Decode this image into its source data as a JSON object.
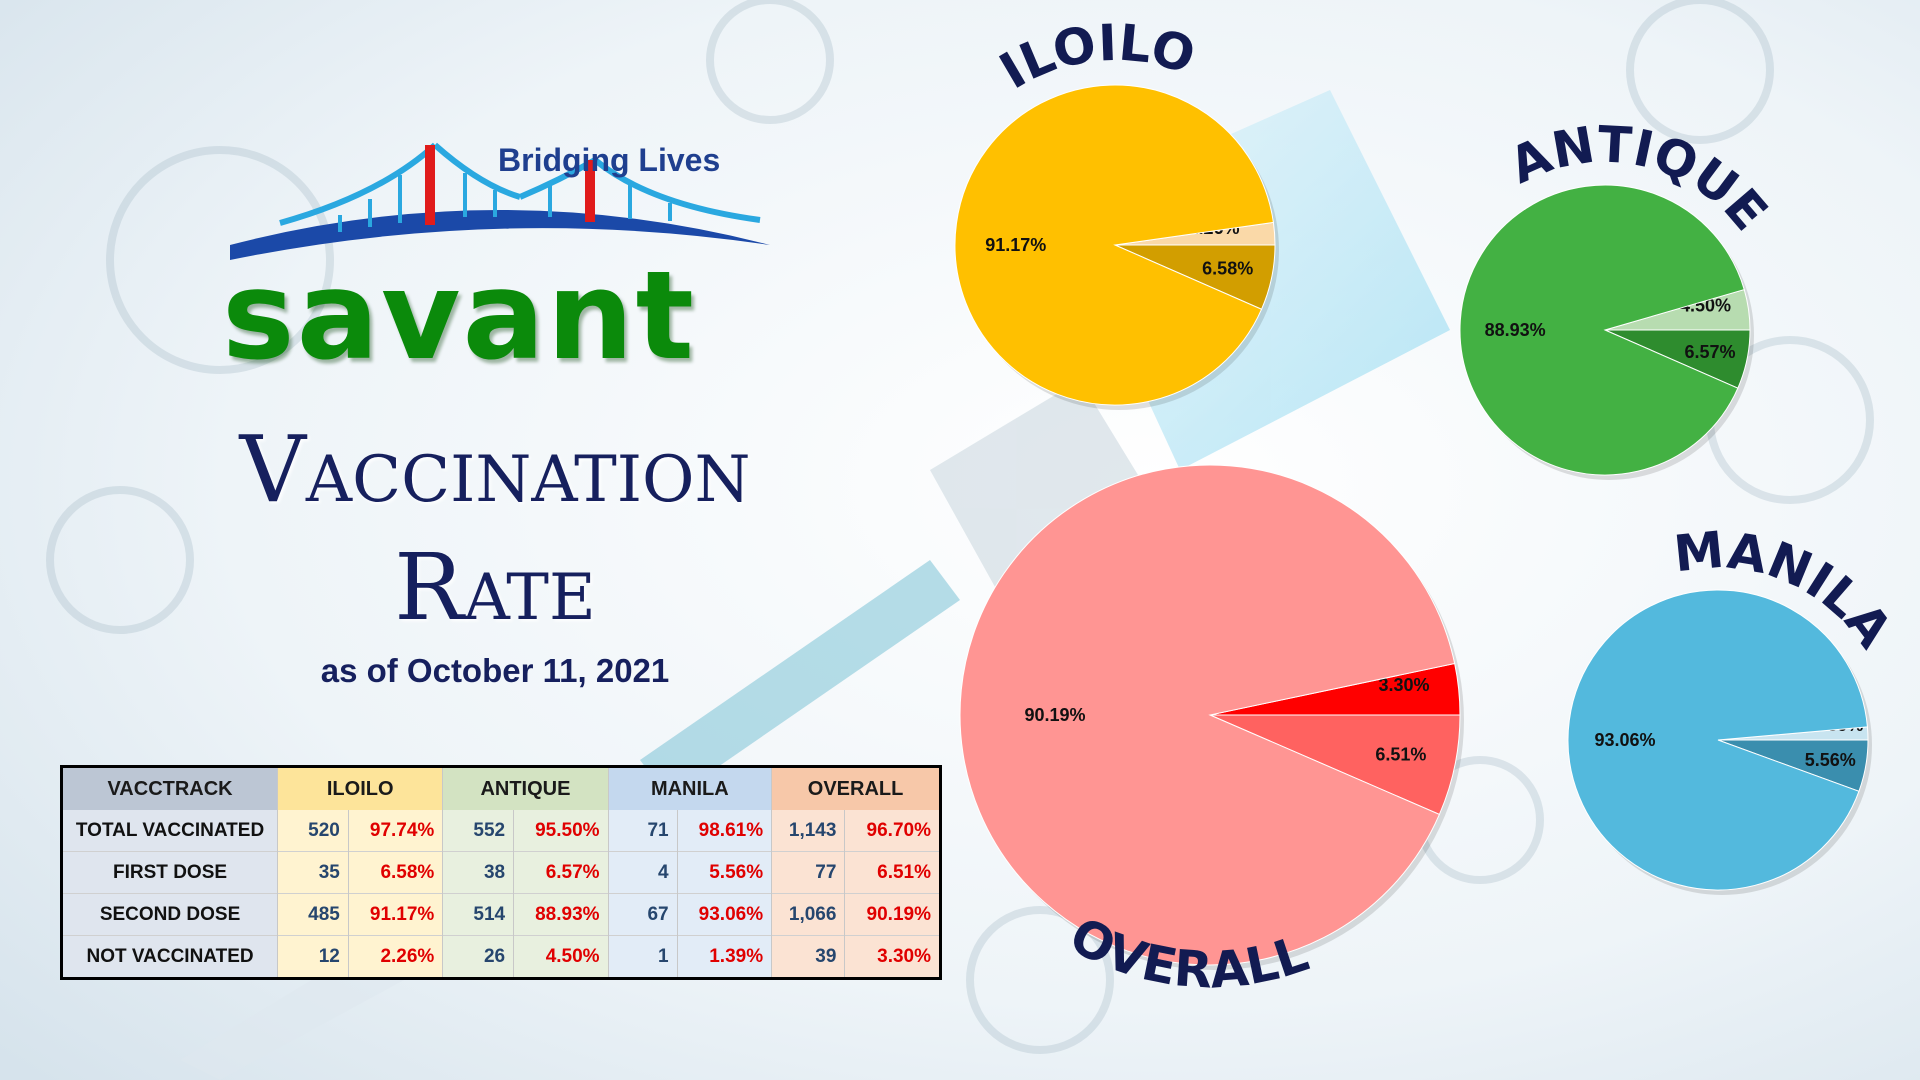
{
  "brand": {
    "tagline": "Bridging Lives",
    "name": "savant"
  },
  "title": {
    "line1": "Vaccination",
    "line2": "Rate",
    "as_of": "as of October 11, 2021"
  },
  "colors": {
    "iloilo": [
      "#ffc000",
      "#fad9a8",
      "#d29e00"
    ],
    "antique": [
      "#43b143",
      "#b7dcb0",
      "#2e8c2e"
    ],
    "overall": [
      "#ff9593",
      "#ff0000",
      "#ff6260"
    ],
    "manila": [
      "#53b9dd",
      "#c8e4f0",
      "#3a8eae"
    ],
    "title_navy": "#16205e",
    "brand_green": "#0b8a0b"
  },
  "table": {
    "headers": [
      "VACCTRACK",
      "ILOILO",
      "ANTIQUE",
      "MANILA",
      "OVERALL"
    ],
    "rows": [
      {
        "label": "TOTAL VACCINATED",
        "cells": [
          [
            "520",
            "97.74%"
          ],
          [
            "552",
            "95.50%"
          ],
          [
            "71",
            "98.61%"
          ],
          [
            "1,143",
            "96.70%"
          ]
        ]
      },
      {
        "label": "FIRST DOSE",
        "cells": [
          [
            "35",
            "6.58%"
          ],
          [
            "38",
            "6.57%"
          ],
          [
            "4",
            "5.56%"
          ],
          [
            "77",
            "6.51%"
          ]
        ]
      },
      {
        "label": "SECOND DOSE",
        "cells": [
          [
            "485",
            "91.17%"
          ],
          [
            "514",
            "88.93%"
          ],
          [
            "67",
            "93.06%"
          ],
          [
            "1,066",
            "90.19%"
          ]
        ]
      },
      {
        "label": "NOT VACCINATED",
        "cells": [
          [
            "12",
            "2.26%"
          ],
          [
            "26",
            "4.50%"
          ],
          [
            "1",
            "1.39%"
          ],
          [
            "39",
            "3.30%"
          ]
        ]
      }
    ]
  },
  "chart_data": [
    {
      "type": "pie",
      "title": "ILOILO",
      "labels": [
        "91.17%",
        "2.26%",
        "6.58%"
      ],
      "values": [
        91.17,
        2.26,
        6.58
      ]
    },
    {
      "type": "pie",
      "title": "ANTIQUE",
      "labels": [
        "88.93%",
        "4.50%",
        "6.57%"
      ],
      "values": [
        88.93,
        4.5,
        6.57
      ]
    },
    {
      "type": "pie",
      "title": "OVERALL",
      "labels": [
        "90.19%",
        "3.30%",
        "6.51%"
      ],
      "values": [
        90.19,
        3.3,
        6.51
      ]
    },
    {
      "type": "pie",
      "title": "MANILA",
      "labels": [
        "93.06%",
        "1.39%",
        "5.56%"
      ],
      "values": [
        93.06,
        1.39,
        5.56
      ]
    }
  ]
}
